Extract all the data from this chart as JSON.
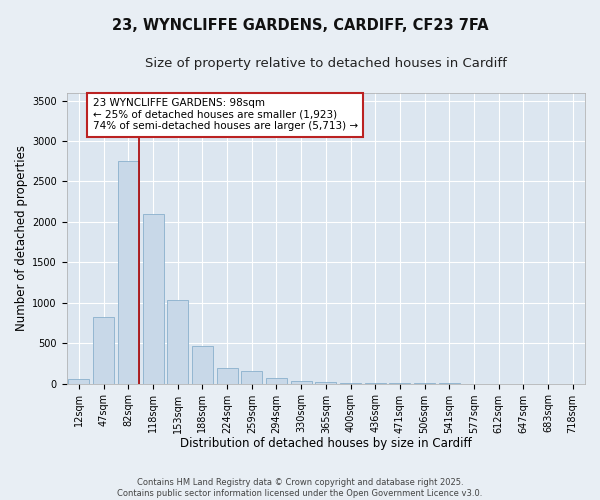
{
  "title_line1": "23, WYNCLIFFE GARDENS, CARDIFF, CF23 7FA",
  "title_line2": "Size of property relative to detached houses in Cardiff",
  "xlabel": "Distribution of detached houses by size in Cardiff",
  "ylabel": "Number of detached properties",
  "categories": [
    "12sqm",
    "47sqm",
    "82sqm",
    "118sqm",
    "153sqm",
    "188sqm",
    "224sqm",
    "259sqm",
    "294sqm",
    "330sqm",
    "365sqm",
    "400sqm",
    "436sqm",
    "471sqm",
    "506sqm",
    "541sqm",
    "577sqm",
    "612sqm",
    "647sqm",
    "683sqm",
    "718sqm"
  ],
  "values": [
    55,
    820,
    2750,
    2100,
    1040,
    460,
    195,
    155,
    65,
    30,
    18,
    8,
    6,
    5,
    3,
    2,
    1,
    1,
    1,
    1,
    1
  ],
  "bar_color": "#c8d8e8",
  "bar_edge_color": "#8ab0cc",
  "vline_color": "#aa0000",
  "annotation_text": "23 WYNCLIFFE GARDENS: 98sqm\n← 25% of detached houses are smaller (1,923)\n74% of semi-detached houses are larger (5,713) →",
  "annotation_box_facecolor": "#ffffff",
  "annotation_box_edgecolor": "#bb2222",
  "ylim": [
    0,
    3600
  ],
  "yticks": [
    0,
    500,
    1000,
    1500,
    2000,
    2500,
    3000,
    3500
  ],
  "background_color": "#e8eef4",
  "plot_bg_color": "#dce6f0",
  "grid_color": "#ffffff",
  "footer_text": "Contains HM Land Registry data © Crown copyright and database right 2025.\nContains public sector information licensed under the Open Government Licence v3.0.",
  "title_fontsize": 10.5,
  "subtitle_fontsize": 9.5,
  "tick_fontsize": 7,
  "ylabel_fontsize": 8.5,
  "xlabel_fontsize": 8.5,
  "annotation_fontsize": 7.5,
  "footer_fontsize": 6.0
}
